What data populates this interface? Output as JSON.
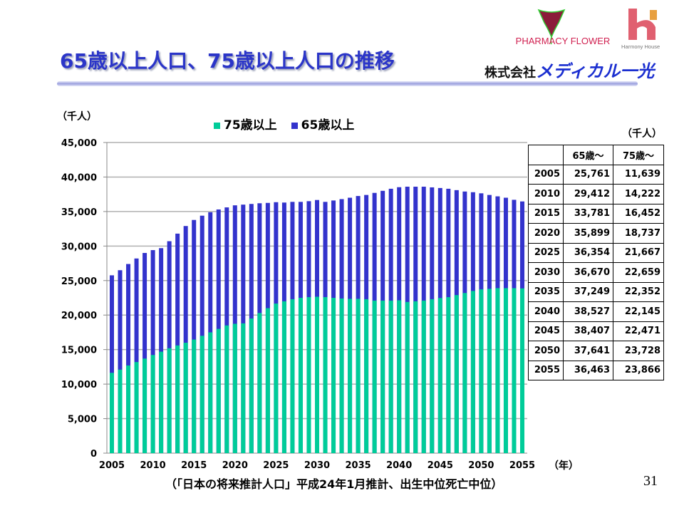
{
  "header": {
    "title": "65歳以上人口、75歳以上人口の推移",
    "logo1_text": "PHARMACY FLOWER",
    "logo2_text": "Harmony House",
    "company_prefix": "株式会社",
    "company_brand": "メディカル一光"
  },
  "chart_data": {
    "type": "bar",
    "stacked": "overlay",
    "yunit": "（千人）",
    "xunit": "（年）",
    "ylim": [
      0,
      45000
    ],
    "yticks": [
      "0",
      "5,000",
      "10,000",
      "15,000",
      "20,000",
      "25,000",
      "30,000",
      "35,000",
      "40,000",
      "45,000"
    ],
    "xticks": [
      "2005",
      "2010",
      "2015",
      "2020",
      "2025",
      "2030",
      "2035",
      "2040",
      "2045",
      "2050",
      "2055"
    ],
    "x_start": 2005,
    "series": [
      {
        "name": "75歳以上",
        "color": "#00cc99",
        "values": [
          11639,
          12100,
          12700,
          13200,
          13700,
          14222,
          14700,
          15200,
          15600,
          16000,
          16452,
          17000,
          17500,
          18000,
          18500,
          18737,
          18800,
          19500,
          20300,
          21000,
          21667,
          22000,
          22300,
          22500,
          22600,
          22659,
          22600,
          22500,
          22400,
          22350,
          22352,
          22300,
          22100,
          22100,
          22100,
          22145,
          21900,
          22000,
          22100,
          22300,
          22471,
          22600,
          22900,
          23200,
          23500,
          23728,
          23800,
          23900,
          23900,
          23900,
          23866
        ]
      },
      {
        "name": "65歳以上",
        "color": "#3333cc",
        "values": [
          25761,
          26500,
          27400,
          28200,
          29000,
          29412,
          29700,
          30700,
          31800,
          32900,
          33781,
          34400,
          34900,
          35300,
          35600,
          35899,
          36000,
          36100,
          36200,
          36250,
          36354,
          36300,
          36400,
          36400,
          36500,
          36670,
          36400,
          36600,
          36800,
          37000,
          37249,
          37400,
          37700,
          38000,
          38300,
          38527,
          38600,
          38600,
          38600,
          38500,
          38407,
          38300,
          38100,
          37900,
          37800,
          37641,
          37400,
          37200,
          37000,
          36700,
          36463
        ]
      }
    ]
  },
  "table": {
    "unit": "（千人）",
    "headers": [
      "",
      "65歳～",
      "75歳～"
    ],
    "rows": [
      [
        "2005",
        "25,761",
        "11,639"
      ],
      [
        "2010",
        "29,412",
        "14,222"
      ],
      [
        "2015",
        "33,781",
        "16,452"
      ],
      [
        "2020",
        "35,899",
        "18,737"
      ],
      [
        "2025",
        "36,354",
        "21,667"
      ],
      [
        "2030",
        "36,670",
        "22,659"
      ],
      [
        "2035",
        "37,249",
        "22,352"
      ],
      [
        "2040",
        "38,527",
        "22,145"
      ],
      [
        "2045",
        "38,407",
        "22,471"
      ],
      [
        "2050",
        "37,641",
        "23,728"
      ],
      [
        "2055",
        "36,463",
        "23,866"
      ]
    ]
  },
  "footer": {
    "source": "（「日本の将来推計人口」平成24年1月推計、出生中位死亡中位）",
    "page": "31"
  }
}
